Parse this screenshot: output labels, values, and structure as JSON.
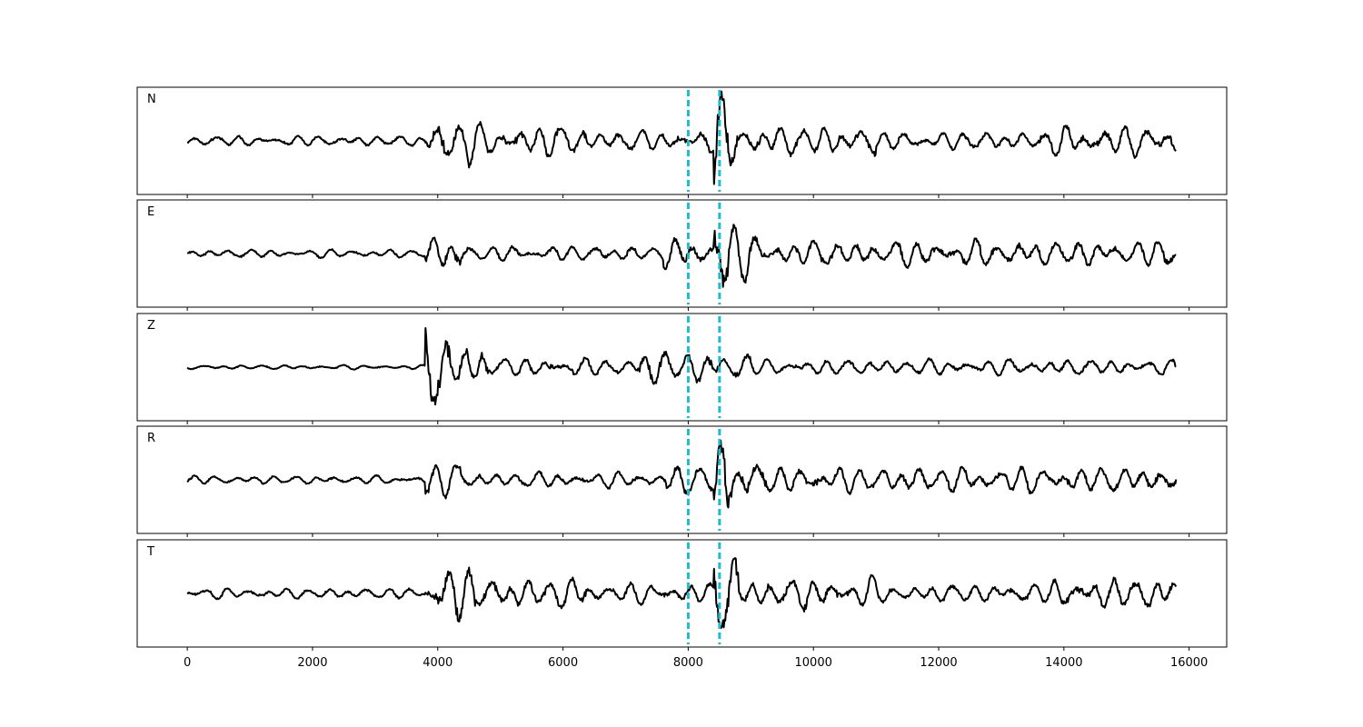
{
  "chart_data": {
    "type": "line",
    "panels": [
      {
        "name": "N",
        "trace": {
          "amp_scale": 1.0,
          "segments": [
            {
              "x0": 0,
              "x1": 3800,
              "amp": 0.1
            },
            {
              "x0": 3800,
              "x1": 4000,
              "amp": 0.35
            },
            {
              "x0": 4000,
              "x1": 4600,
              "amp": 0.55
            },
            {
              "x0": 4600,
              "x1": 6400,
              "amp": 0.3
            },
            {
              "x0": 6400,
              "x1": 8400,
              "amp": 0.2
            },
            {
              "x0": 8400,
              "x1": 8800,
              "amp": 0.9
            },
            {
              "x0": 8800,
              "x1": 11000,
              "amp": 0.3
            },
            {
              "x0": 11000,
              "x1": 13800,
              "amp": 0.18
            },
            {
              "x0": 13800,
              "x1": 15800,
              "amp": 0.3
            }
          ]
        }
      },
      {
        "name": "E",
        "trace": {
          "amp_scale": 1.0,
          "segments": [
            {
              "x0": 0,
              "x1": 3800,
              "amp": 0.08
            },
            {
              "x0": 3800,
              "x1": 4400,
              "amp": 0.35
            },
            {
              "x0": 4400,
              "x1": 7600,
              "amp": 0.15
            },
            {
              "x0": 7600,
              "x1": 8400,
              "amp": 0.3
            },
            {
              "x0": 8400,
              "x1": 8650,
              "amp": 0.95
            },
            {
              "x0": 8650,
              "x1": 9200,
              "amp": 0.5
            },
            {
              "x0": 9200,
              "x1": 15800,
              "amp": 0.25
            }
          ]
        }
      },
      {
        "name": "Z",
        "trace": {
          "amp_scale": 1.0,
          "segments": [
            {
              "x0": 0,
              "x1": 3800,
              "amp": 0.04
            },
            {
              "x0": 3800,
              "x1": 4200,
              "amp": 0.9
            },
            {
              "x0": 4200,
              "x1": 4800,
              "amp": 0.45
            },
            {
              "x0": 4800,
              "x1": 7200,
              "amp": 0.18
            },
            {
              "x0": 7200,
              "x1": 7800,
              "amp": 0.35
            },
            {
              "x0": 7800,
              "x1": 9000,
              "amp": 0.3
            },
            {
              "x0": 9000,
              "x1": 15800,
              "amp": 0.15
            }
          ]
        }
      },
      {
        "name": "R",
        "trace": {
          "amp_scale": 1.0,
          "segments": [
            {
              "x0": 0,
              "x1": 3800,
              "amp": 0.08
            },
            {
              "x0": 3800,
              "x1": 4400,
              "amp": 0.35
            },
            {
              "x0": 4400,
              "x1": 7600,
              "amp": 0.15
            },
            {
              "x0": 7600,
              "x1": 8400,
              "amp": 0.3
            },
            {
              "x0": 8400,
              "x1": 8650,
              "amp": 0.95
            },
            {
              "x0": 8650,
              "x1": 9200,
              "amp": 0.45
            },
            {
              "x0": 9200,
              "x1": 15800,
              "amp": 0.25
            }
          ]
        }
      },
      {
        "name": "T",
        "trace": {
          "amp_scale": 1.0,
          "segments": [
            {
              "x0": 0,
              "x1": 3800,
              "amp": 0.1
            },
            {
              "x0": 3800,
              "x1": 4000,
              "amp": 0.35
            },
            {
              "x0": 4000,
              "x1": 4600,
              "amp": 0.55
            },
            {
              "x0": 4600,
              "x1": 6400,
              "amp": 0.3
            },
            {
              "x0": 6400,
              "x1": 8400,
              "amp": 0.2
            },
            {
              "x0": 8400,
              "x1": 8800,
              "amp": 0.9
            },
            {
              "x0": 8800,
              "x1": 11000,
              "amp": 0.3
            },
            {
              "x0": 11000,
              "x1": 13800,
              "amp": 0.18
            },
            {
              "x0": 13800,
              "x1": 15800,
              "amp": 0.3
            }
          ]
        }
      }
    ],
    "markers": [
      8000,
      8500
    ],
    "marker_color": "#17becf",
    "trace_color": "#000000",
    "xlim": [
      -800,
      16600
    ],
    "ylim": [
      -1.15,
      1.15
    ],
    "x_ticks": [
      0,
      2000,
      4000,
      6000,
      8000,
      10000,
      12000,
      14000,
      16000
    ],
    "x_tick_labels": [
      "0",
      "2000",
      "4000",
      "6000",
      "8000",
      "10000",
      "12000",
      "14000",
      "16000"
    ],
    "grid": false,
    "shared_x": true
  }
}
